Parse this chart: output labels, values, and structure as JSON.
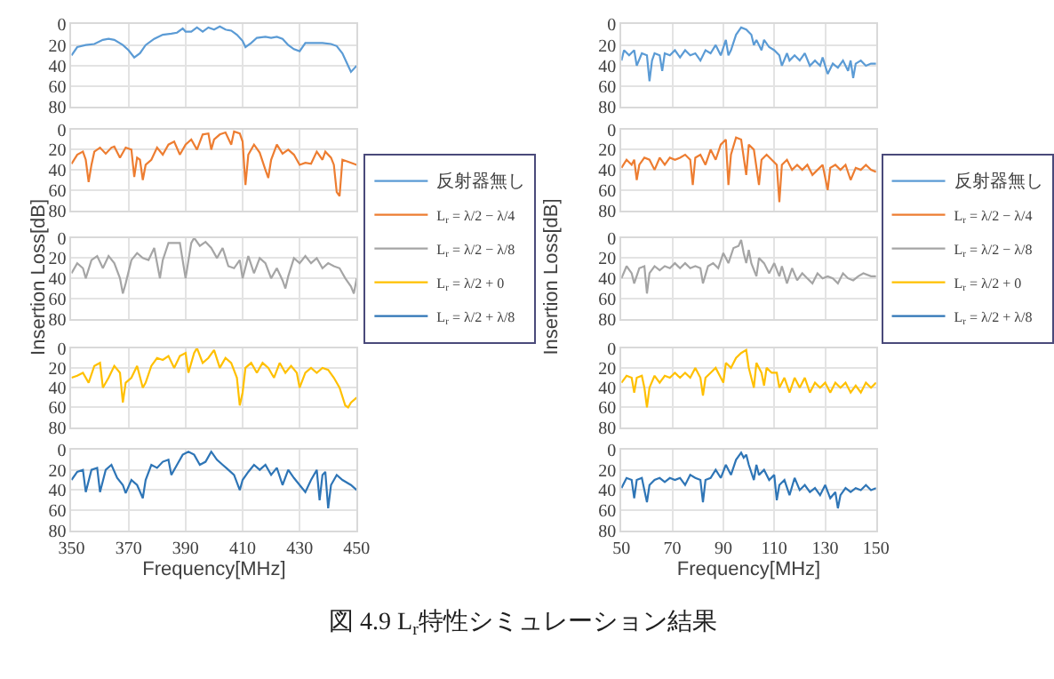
{
  "chart_data": [
    {
      "type": "line",
      "x": [
        350,
        352,
        355,
        358,
        361,
        363,
        365,
        368,
        370,
        372,
        374,
        376,
        379,
        382,
        385,
        387,
        389,
        390,
        392,
        394,
        396,
        398,
        400,
        402,
        404,
        406,
        408,
        410,
        411,
        413,
        415,
        418,
        420,
        422,
        424,
        426,
        428,
        430,
        432,
        435,
        438,
        441,
        443,
        445,
        447,
        448,
        450
      ],
      "series": [
        {
          "name": "反射器無し",
          "color": "#5b9bd5",
          "values": [
            30,
            22,
            20,
            19,
            15,
            14,
            15,
            20,
            25,
            32,
            28,
            20,
            14,
            10,
            9,
            8,
            4,
            7,
            7,
            3,
            7,
            3,
            5,
            2,
            5,
            6,
            10,
            16,
            22,
            18,
            13,
            12,
            13,
            12,
            14,
            20,
            24,
            26,
            18,
            18,
            18,
            19,
            21,
            28,
            40,
            46,
            40
          ]
        }
      ],
      "xlim": [
        350,
        450
      ],
      "xticks": [
        350,
        370,
        390,
        410,
        430,
        450
      ],
      "ylim": [
        80,
        0
      ],
      "yticks": [
        0,
        20,
        40,
        60,
        80
      ],
      "grid": true,
      "legend": "right",
      "tick_labels": "y"
    },
    {
      "type": "line",
      "x": [
        350,
        352,
        354,
        355,
        356,
        357,
        358,
        360,
        362,
        364,
        365,
        367,
        369,
        371,
        372,
        373,
        374,
        375,
        376,
        378,
        380,
        382,
        384,
        386,
        388,
        390,
        392,
        394,
        396,
        398,
        399,
        400,
        402,
        404,
        406,
        407,
        409,
        410,
        411,
        412,
        414,
        416,
        418,
        419,
        420,
        422,
        424,
        426,
        428,
        430,
        432,
        434,
        436,
        438,
        439,
        441,
        442,
        443,
        444,
        445,
        447,
        450
      ],
      "series": [
        {
          "name": "L$_{r}$ = λ/2 − λ/4",
          "color": "#ed7d31",
          "values": [
            34,
            25,
            22,
            30,
            52,
            35,
            22,
            18,
            24,
            18,
            17,
            28,
            18,
            20,
            47,
            28,
            30,
            50,
            35,
            30,
            18,
            25,
            15,
            12,
            25,
            15,
            10,
            20,
            5,
            4,
            20,
            10,
            5,
            3,
            15,
            2,
            4,
            12,
            55,
            25,
            15,
            23,
            40,
            48,
            30,
            15,
            24,
            20,
            25,
            35,
            33,
            34,
            22,
            30,
            22,
            28,
            35,
            62,
            66,
            30,
            32,
            35
          ]
        }
      ],
      "xlim": [
        350,
        450
      ],
      "xticks": [
        350,
        370,
        390,
        410,
        430,
        450
      ],
      "ylim": [
        80,
        0
      ],
      "yticks": [
        0,
        20,
        40,
        60,
        80
      ],
      "grid": true,
      "legend": "right",
      "tick_labels": "y"
    },
    {
      "type": "line",
      "x": [
        350,
        352,
        354,
        355,
        357,
        359,
        361,
        363,
        365,
        367,
        368,
        369,
        371,
        373,
        375,
        377,
        379,
        381,
        382,
        384,
        386,
        388,
        390,
        392,
        393,
        395,
        397,
        399,
        401,
        403,
        405,
        407,
        409,
        410,
        412,
        414,
        416,
        418,
        420,
        422,
        424,
        425,
        426,
        428,
        430,
        432,
        434,
        436,
        438,
        440,
        442,
        444,
        446,
        448,
        449,
        450
      ],
      "series": [
        {
          "name": "L$_{r}$ = λ/2 − λ/8",
          "color": "#a5a5a5",
          "values": [
            35,
            25,
            30,
            40,
            22,
            18,
            30,
            18,
            25,
            40,
            55,
            45,
            22,
            15,
            20,
            22,
            10,
            40,
            22,
            5,
            5,
            5,
            40,
            5,
            0,
            8,
            4,
            10,
            20,
            10,
            28,
            30,
            22,
            40,
            18,
            35,
            20,
            25,
            40,
            30,
            42,
            50,
            38,
            20,
            25,
            18,
            25,
            20,
            30,
            25,
            28,
            30,
            40,
            48,
            55,
            40
          ]
        }
      ],
      "xlim": [
        350,
        450
      ],
      "xticks": [
        350,
        370,
        390,
        410,
        430,
        450
      ],
      "ylim": [
        80,
        0
      ],
      "yticks": [
        0,
        20,
        40,
        60,
        80
      ],
      "grid": true,
      "legend": "right",
      "tick_labels": "y",
      "ylabel": "Insertion Loss[dB]"
    },
    {
      "type": "line",
      "x": [
        350,
        352,
        354,
        356,
        358,
        360,
        361,
        363,
        365,
        367,
        368,
        369,
        371,
        373,
        375,
        376,
        378,
        380,
        382,
        384,
        386,
        388,
        390,
        391,
        393,
        394,
        396,
        398,
        400,
        402,
        404,
        406,
        408,
        409,
        410,
        411,
        413,
        415,
        417,
        419,
        421,
        423,
        425,
        427,
        429,
        430,
        432,
        434,
        436,
        438,
        440,
        442,
        444,
        446,
        447,
        448,
        450
      ],
      "series": [
        {
          "name": "L$_{r}$ = λ/2 + 0",
          "color": "#ffc000",
          "values": [
            30,
            28,
            25,
            35,
            18,
            15,
            40,
            30,
            18,
            25,
            55,
            35,
            30,
            18,
            40,
            35,
            18,
            10,
            12,
            8,
            20,
            8,
            5,
            25,
            5,
            0,
            15,
            10,
            2,
            20,
            10,
            15,
            30,
            58,
            45,
            20,
            15,
            25,
            15,
            20,
            30,
            15,
            25,
            18,
            25,
            40,
            25,
            20,
            25,
            20,
            22,
            30,
            40,
            58,
            60,
            55,
            50
          ]
        }
      ],
      "xlim": [
        350,
        450
      ],
      "xticks": [
        350,
        370,
        390,
        410,
        430,
        450
      ],
      "ylim": [
        80,
        0
      ],
      "yticks": [
        0,
        20,
        40,
        60,
        80
      ],
      "grid": true,
      "legend": "right",
      "tick_labels": "y"
    },
    {
      "type": "line",
      "x": [
        350,
        352,
        354,
        355,
        357,
        359,
        360,
        362,
        364,
        366,
        368,
        369,
        371,
        373,
        375,
        376,
        378,
        380,
        382,
        384,
        385,
        387,
        389,
        391,
        393,
        395,
        397,
        399,
        401,
        403,
        405,
        407,
        409,
        410,
        412,
        414,
        416,
        418,
        420,
        422,
        424,
        426,
        428,
        430,
        432,
        434,
        436,
        437,
        438,
        439,
        440,
        441,
        443,
        445,
        448,
        450
      ],
      "series": [
        {
          "name": "L$_{r}$ = λ/2 + λ/8",
          "color": "#2e75b6",
          "values": [
            30,
            22,
            20,
            42,
            20,
            18,
            42,
            20,
            15,
            28,
            35,
            43,
            30,
            35,
            48,
            30,
            15,
            18,
            12,
            10,
            25,
            15,
            5,
            2,
            5,
            15,
            12,
            2,
            10,
            15,
            20,
            25,
            40,
            30,
            22,
            15,
            20,
            15,
            25,
            18,
            35,
            20,
            28,
            35,
            42,
            30,
            20,
            50,
            25,
            22,
            58,
            35,
            25,
            30,
            35,
            40
          ]
        }
      ],
      "xlim": [
        350,
        450
      ],
      "xticks": [
        350,
        370,
        390,
        410,
        430,
        450
      ],
      "ylim": [
        80,
        0
      ],
      "yticks": [
        0,
        20,
        40,
        60,
        80
      ],
      "grid": true,
      "legend": "right",
      "xlabel": "Frequency[MHz]"
    },
    {
      "type": "line",
      "x": [
        50,
        51,
        53,
        55,
        56,
        58,
        60,
        61,
        62,
        63,
        65,
        66,
        67,
        69,
        71,
        73,
        75,
        77,
        79,
        81,
        83,
        85,
        87,
        89,
        91,
        92,
        93,
        95,
        97,
        99,
        101,
        102,
        103,
        105,
        106,
        108,
        110,
        112,
        113,
        115,
        116,
        118,
        120,
        122,
        124,
        126,
        128,
        129,
        131,
        133,
        135,
        137,
        139,
        140,
        141,
        142,
        144,
        146,
        148,
        150
      ],
      "series": [
        {
          "name": "反射器無し",
          "color": "#5b9bd5",
          "values": [
            35,
            25,
            30,
            25,
            40,
            28,
            30,
            55,
            35,
            28,
            30,
            45,
            28,
            30,
            25,
            32,
            25,
            30,
            28,
            35,
            25,
            28,
            20,
            30,
            15,
            30,
            25,
            10,
            3,
            5,
            10,
            20,
            15,
            25,
            15,
            22,
            25,
            30,
            40,
            28,
            35,
            30,
            35,
            28,
            40,
            35,
            40,
            32,
            48,
            38,
            42,
            35,
            45,
            35,
            52,
            38,
            35,
            40,
            38,
            38
          ]
        }
      ],
      "xlim": [
        50,
        150
      ],
      "xticks": [
        50,
        70,
        90,
        110,
        130,
        150
      ],
      "ylim": [
        80,
        0
      ],
      "yticks": [
        0,
        20,
        40,
        60,
        80
      ],
      "grid": true,
      "legend": "right",
      "tick_labels": "y"
    },
    {
      "type": "line",
      "x": [
        50,
        52,
        54,
        55,
        56,
        57,
        59,
        61,
        63,
        65,
        67,
        69,
        71,
        73,
        75,
        77,
        78,
        79,
        81,
        83,
        85,
        87,
        89,
        91,
        92,
        93,
        95,
        97,
        99,
        100,
        102,
        104,
        105,
        107,
        109,
        111,
        112,
        113,
        115,
        117,
        119,
        121,
        123,
        125,
        127,
        129,
        131,
        132,
        134,
        136,
        138,
        140,
        142,
        144,
        146,
        148,
        150
      ],
      "series": [
        {
          "name": "L$_{r}$ = λ/2 − λ/4",
          "color": "#ed7d31",
          "values": [
            38,
            30,
            35,
            30,
            50,
            35,
            28,
            30,
            40,
            28,
            35,
            28,
            30,
            28,
            25,
            30,
            55,
            28,
            25,
            35,
            20,
            30,
            15,
            10,
            55,
            25,
            8,
            10,
            45,
            15,
            20,
            55,
            30,
            25,
            30,
            35,
            72,
            35,
            30,
            40,
            35,
            40,
            35,
            45,
            40,
            35,
            60,
            38,
            35,
            40,
            35,
            50,
            38,
            40,
            35,
            40,
            42
          ]
        }
      ],
      "xlim": [
        50,
        150
      ],
      "xticks": [
        50,
        70,
        90,
        110,
        130,
        150
      ],
      "ylim": [
        80,
        0
      ],
      "yticks": [
        0,
        20,
        40,
        60,
        80
      ],
      "grid": true,
      "legend": "right",
      "tick_labels": "y"
    },
    {
      "type": "line",
      "x": [
        50,
        52,
        54,
        55,
        57,
        59,
        60,
        61,
        63,
        65,
        67,
        69,
        71,
        73,
        75,
        77,
        79,
        81,
        82,
        84,
        86,
        88,
        90,
        92,
        94,
        96,
        97,
        98,
        99,
        100,
        101,
        103,
        104,
        106,
        108,
        110,
        112,
        113,
        115,
        117,
        119,
        121,
        123,
        125,
        127,
        129,
        131,
        133,
        135,
        137,
        139,
        141,
        143,
        145,
        148,
        150
      ],
      "series": [
        {
          "name": "L$_{r}$ = λ/2 − λ/8",
          "color": "#a5a5a5",
          "values": [
            40,
            28,
            35,
            45,
            30,
            28,
            55,
            35,
            28,
            32,
            28,
            30,
            25,
            30,
            25,
            30,
            28,
            30,
            45,
            28,
            25,
            30,
            15,
            25,
            10,
            8,
            2,
            15,
            25,
            12,
            25,
            38,
            20,
            25,
            35,
            25,
            38,
            28,
            45,
            30,
            42,
            35,
            40,
            45,
            35,
            40,
            38,
            40,
            45,
            35,
            40,
            42,
            38,
            35,
            38,
            38
          ]
        }
      ],
      "xlim": [
        50,
        150
      ],
      "xticks": [
        50,
        70,
        90,
        110,
        130,
        150
      ],
      "ylim": [
        80,
        0
      ],
      "yticks": [
        0,
        20,
        40,
        60,
        80
      ],
      "grid": true,
      "legend": "right",
      "tick_labels": "y",
      "ylabel": "Insertion Loss[dB]"
    },
    {
      "type": "line",
      "x": [
        50,
        52,
        54,
        55,
        56,
        58,
        59,
        60,
        61,
        63,
        65,
        67,
        69,
        71,
        73,
        75,
        77,
        79,
        81,
        82,
        83,
        85,
        87,
        89,
        90,
        91,
        93,
        95,
        97,
        99,
        100,
        102,
        103,
        105,
        106,
        107,
        109,
        111,
        112,
        114,
        116,
        118,
        120,
        122,
        124,
        126,
        128,
        130,
        132,
        134,
        136,
        138,
        140,
        142,
        144,
        146,
        148,
        150
      ],
      "series": [
        {
          "name": "L$_{r}$ = λ/2 + 0",
          "color": "#ffc000",
          "values": [
            35,
            28,
            30,
            45,
            30,
            28,
            40,
            60,
            40,
            28,
            35,
            28,
            30,
            25,
            30,
            25,
            30,
            20,
            30,
            48,
            30,
            25,
            20,
            30,
            35,
            15,
            20,
            10,
            5,
            2,
            20,
            40,
            15,
            25,
            38,
            20,
            25,
            25,
            40,
            30,
            45,
            30,
            40,
            30,
            45,
            35,
            40,
            35,
            45,
            35,
            40,
            35,
            45,
            38,
            45,
            35,
            40,
            35
          ]
        }
      ],
      "xlim": [
        50,
        150
      ],
      "xticks": [
        50,
        70,
        90,
        110,
        130,
        150
      ],
      "ylim": [
        80,
        0
      ],
      "yticks": [
        0,
        20,
        40,
        60,
        80
      ],
      "grid": true,
      "legend": "right",
      "tick_labels": "y"
    },
    {
      "type": "line",
      "x": [
        50,
        52,
        54,
        55,
        56,
        58,
        59,
        60,
        61,
        63,
        65,
        67,
        69,
        71,
        73,
        75,
        77,
        79,
        81,
        82,
        83,
        85,
        87,
        89,
        91,
        93,
        95,
        97,
        98,
        99,
        100,
        102,
        103,
        104,
        106,
        108,
        110,
        111,
        112,
        114,
        116,
        118,
        120,
        122,
        124,
        126,
        128,
        130,
        132,
        134,
        135,
        136,
        138,
        140,
        142,
        144,
        146,
        148,
        150
      ],
      "series": [
        {
          "name": "L$_{r}$ = λ/2 + λ/8",
          "color": "#2e75b6",
          "values": [
            38,
            28,
            30,
            48,
            30,
            28,
            40,
            52,
            35,
            30,
            28,
            32,
            28,
            30,
            28,
            35,
            25,
            28,
            30,
            52,
            30,
            28,
            20,
            28,
            15,
            25,
            10,
            3,
            8,
            5,
            15,
            30,
            15,
            25,
            20,
            30,
            25,
            50,
            35,
            30,
            45,
            28,
            40,
            35,
            42,
            38,
            45,
            35,
            48,
            42,
            58,
            45,
            38,
            42,
            38,
            40,
            35,
            40,
            38
          ]
        }
      ],
      "xlim": [
        50,
        150
      ],
      "xticks": [
        50,
        70,
        90,
        110,
        130,
        150
      ],
      "ylim": [
        80,
        0
      ],
      "yticks": [
        0,
        20,
        40,
        60,
        80
      ],
      "grid": true,
      "legend": "right",
      "xlabel": "Frequency[MHz]",
      "annotations": [
        "図 4.9 L$_{r}$特性シミュレーション結果"
      ]
    }
  ]
}
